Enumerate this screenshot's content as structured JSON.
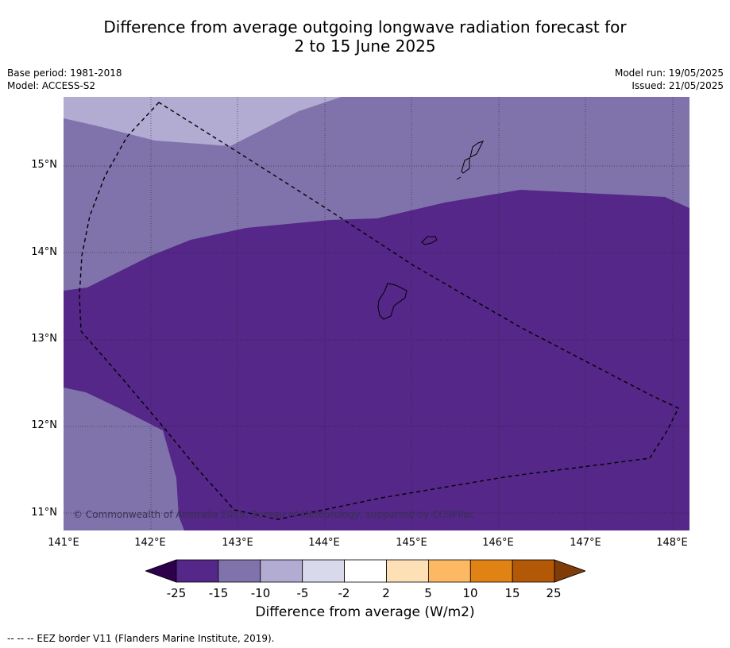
{
  "title_line1": "Difference from average outgoing longwave radiation forecast for",
  "title_line2": "2 to 15 June 2025",
  "base_period": "Base period: 1981-2018",
  "model": "Model: ACCESS-S2",
  "model_run": "Model run: 19/05/2025",
  "issued": "Issued: 21/05/2025",
  "credit": "© Commonwealth of Australia 2025, Bureau of Meteorology, supported by COSPPac",
  "lat_labels": [
    "15°N",
    "14°N",
    "13°N",
    "12°N",
    "11°N"
  ],
  "lon_labels": [
    "141°E",
    "142°E",
    "143°E",
    "144°E",
    "145°E",
    "146°E",
    "147°E",
    "148°E"
  ],
  "colorbar": {
    "ticks": [
      "-25",
      "-15",
      "-10",
      "-5",
      "-2",
      "2",
      "5",
      "10",
      "15",
      "25"
    ],
    "colors": [
      "#2d004b",
      "#542788",
      "#8073ac",
      "#b2abd2",
      "#d8daeb",
      "#ffffff",
      "#fee0b6",
      "#fdb863",
      "#e08214",
      "#b35806",
      "#7f3b08"
    ],
    "label": "Difference from average (W/m2)"
  },
  "footer": "--  --  -- EEZ border V11 (Flanders Marine Institute, 2019)."
}
